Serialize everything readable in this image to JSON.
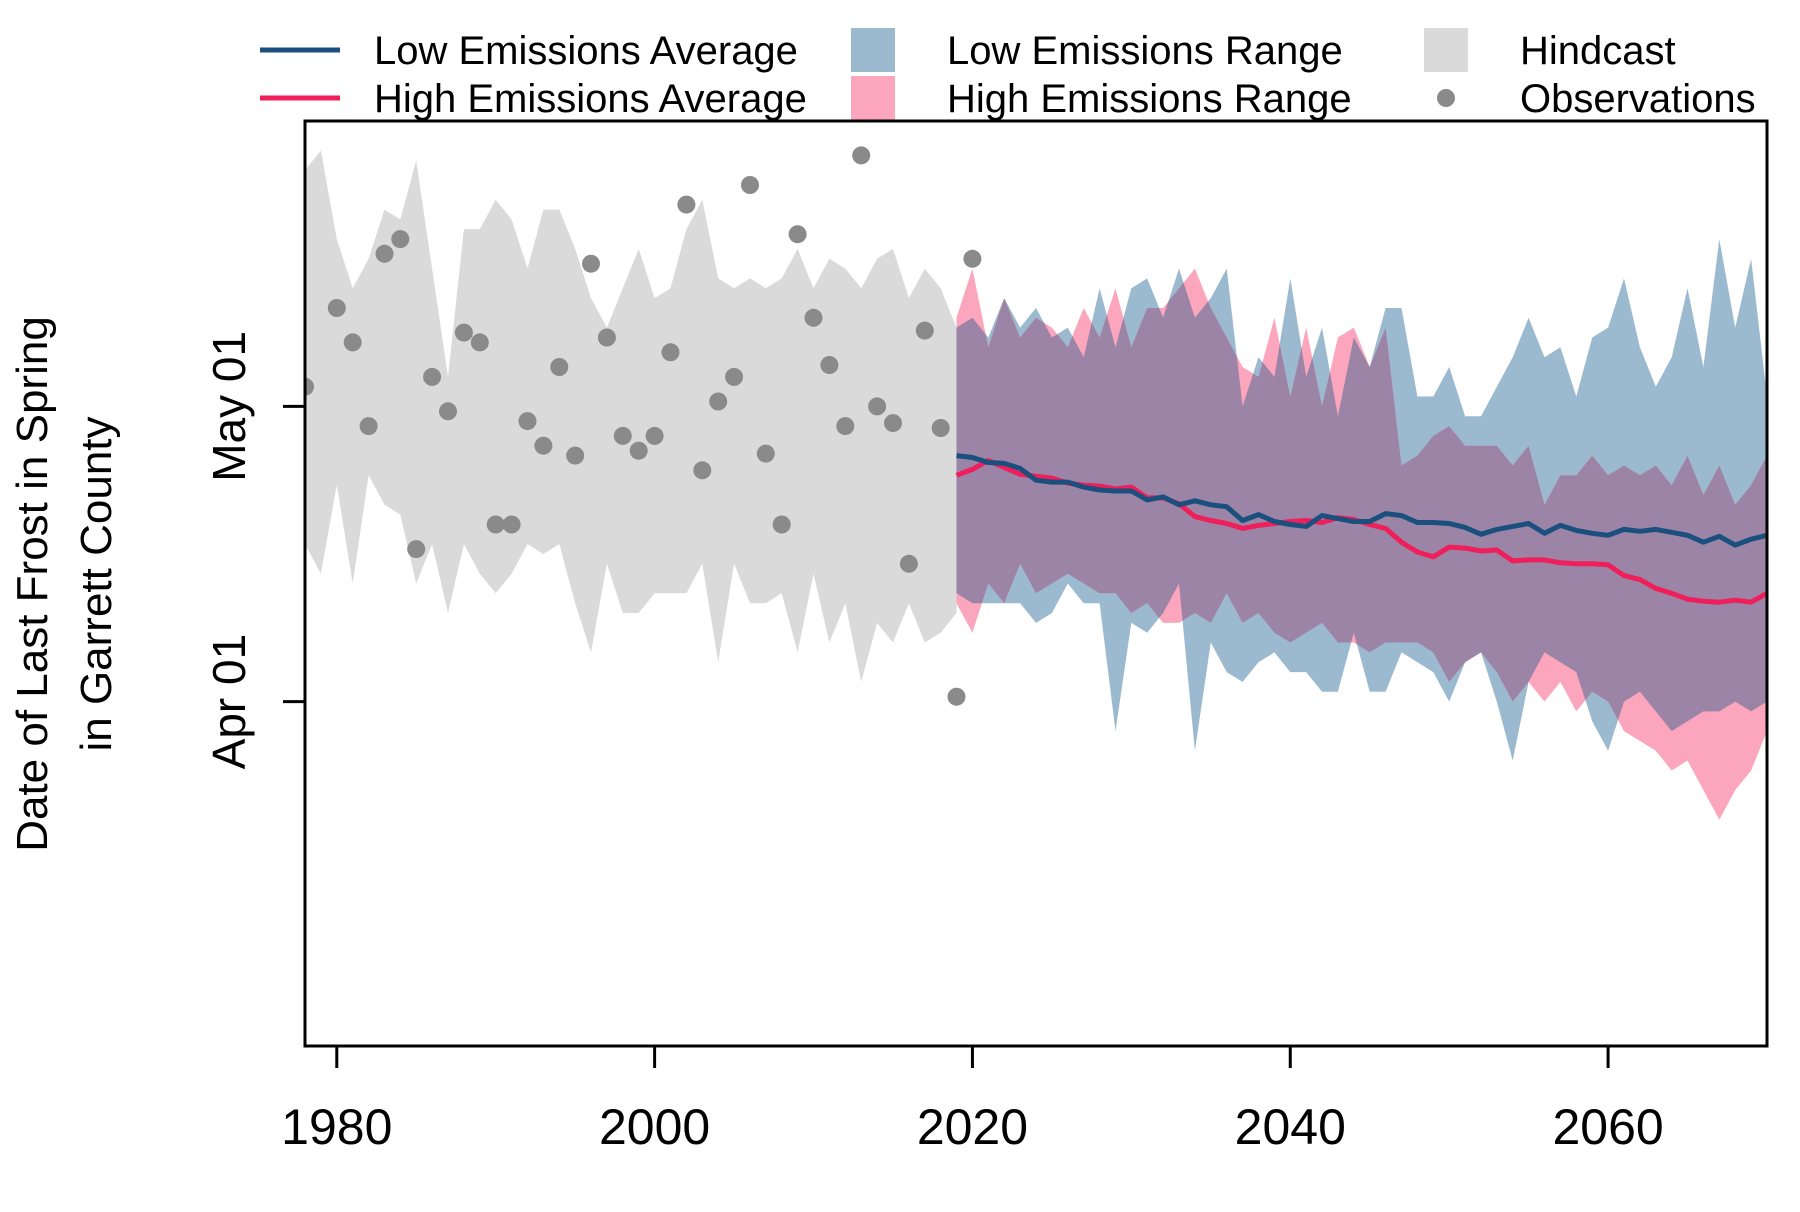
{
  "chart_data": {
    "type": "area",
    "title": "",
    "xlabel": "",
    "ylabel": "Date of Last Frost in Spring\nin Garrett County",
    "xlim": [
      1978,
      2070
    ],
    "ylim": [
      -65,
      29
    ],
    "x_ticks": [
      1980,
      2000,
      2020,
      2040,
      2060
    ],
    "y_ticks": [
      {
        "value": 0,
        "label": "May 01"
      },
      {
        "value": -30,
        "label": "Apr 01"
      }
    ],
    "legend_position": "top (outside plot, 3 columns)",
    "legend": [
      {
        "label": "Low Emissions Average",
        "kind": "line",
        "color": "#1a4f7e"
      },
      {
        "label": "High Emissions Average",
        "kind": "line",
        "color": "#ee1f5a"
      },
      {
        "label": "Low Emissions Range",
        "kind": "box",
        "color": "#9bbad0"
      },
      {
        "label": "High Emissions Range",
        "kind": "box",
        "color": "#fca6bd"
      },
      {
        "label": "Hindcast",
        "kind": "box",
        "color": "#dadada"
      },
      {
        "label": "Observations",
        "kind": "point",
        "color": "#8a8a8a"
      }
    ],
    "colors": {
      "low_avg": "#1a4f7e",
      "high_avg": "#ee1f5a",
      "low_range": "#9bbad0",
      "high_range": "#fca6bd",
      "overlap": "#9b84a6",
      "hindcast": "#dadada",
      "observations": "#8a8a8a"
    },
    "series": [
      {
        "name": "Hindcast",
        "kind": "range",
        "x": [
          1978,
          1979,
          1980,
          1981,
          1982,
          1983,
          1984,
          1985,
          1986,
          1987,
          1988,
          1989,
          1990,
          1991,
          1992,
          1993,
          1994,
          1995,
          1996,
          1997,
          1998,
          1999,
          2000,
          2001,
          2002,
          2003,
          2004,
          2005,
          2006,
          2007,
          2008,
          2009,
          2010,
          2011,
          2012,
          2013,
          2014,
          2015,
          2016,
          2017,
          2018,
          2019
        ],
        "upper": [
          24,
          26,
          17,
          12,
          15,
          20,
          19,
          25,
          14,
          3,
          18,
          18,
          21,
          19,
          14,
          20,
          20,
          16,
          11,
          8,
          12,
          16,
          11,
          12,
          18,
          21,
          13,
          12,
          13,
          12,
          13,
          16,
          12,
          15,
          14,
          12,
          15,
          16,
          11,
          14,
          12,
          8
        ],
        "lower": [
          -14,
          -17,
          -8,
          -18,
          -7,
          -10,
          -11,
          -18,
          -14,
          -21,
          -14,
          -17,
          -19,
          -17,
          -14,
          -15,
          -14,
          -20,
          -25,
          -16,
          -21,
          -21,
          -19,
          -19,
          -19,
          -16,
          -26,
          -16,
          -20,
          -20,
          -19,
          -25,
          -17,
          -24,
          -20,
          -28,
          -22,
          -24,
          -20,
          -24,
          -23,
          -21
        ]
      },
      {
        "name": "Observations",
        "kind": "points",
        "x": [
          1978,
          1980,
          1981,
          1982,
          1983,
          1984,
          1985,
          1986,
          1987,
          1988,
          1989,
          1990,
          1991,
          1992,
          1993,
          1994,
          1995,
          1996,
          1997,
          1998,
          1999,
          2000,
          2001,
          2002,
          2003,
          2004,
          2005,
          2006,
          2007,
          2008,
          2009,
          2010,
          2011,
          2012,
          2013,
          2014,
          2015,
          2016,
          2017,
          2018,
          2019,
          2020
        ],
        "y": [
          2,
          10,
          6.5,
          -2,
          15.5,
          17,
          -14.5,
          3,
          -0.5,
          7.5,
          6.5,
          -12,
          -12,
          -1.5,
          -4,
          4,
          -5,
          14.5,
          7,
          -3,
          -4.5,
          -3,
          5.5,
          20.5,
          -6.5,
          0.5,
          3,
          22.5,
          -4.8,
          -12,
          17.5,
          9,
          4.2,
          -2,
          25.5,
          0,
          -1.7,
          -16,
          7.7,
          -2.2,
          -29.5,
          15
        ]
      },
      {
        "name": "Low Emissions Range",
        "kind": "range",
        "x": [
          2019,
          2020,
          2021,
          2022,
          2023,
          2024,
          2025,
          2026,
          2027,
          2028,
          2029,
          2030,
          2031,
          2032,
          2033,
          2034,
          2035,
          2036,
          2037,
          2038,
          2039,
          2040,
          2041,
          2042,
          2043,
          2044,
          2045,
          2046,
          2047,
          2048,
          2049,
          2050,
          2051,
          2052,
          2053,
          2054,
          2055,
          2056,
          2057,
          2058,
          2059,
          2060,
          2061,
          2062,
          2063,
          2064,
          2065,
          2066,
          2067,
          2068,
          2069,
          2070
        ],
        "upper": [
          8,
          9,
          7,
          11,
          8,
          10,
          7,
          8,
          5,
          12,
          6,
          12,
          13,
          9,
          14,
          9,
          11,
          14,
          0,
          5,
          3,
          13,
          3,
          8,
          -1,
          7,
          4,
          10,
          10,
          1,
          1,
          4,
          -1,
          -1,
          2,
          5,
          9,
          5,
          6,
          1,
          7,
          8,
          13,
          6,
          2,
          5,
          12,
          4,
          17,
          8,
          15,
          1
        ],
        "lower": [
          -19,
          -20,
          -20,
          -20,
          -20,
          -22,
          -21,
          -18,
          -20,
          -20,
          -33,
          -22,
          -23,
          -21,
          -18,
          -35,
          -24,
          -27,
          -28,
          -26,
          -25,
          -27,
          -27,
          -29,
          -29,
          -23,
          -29,
          -29,
          -25,
          -26,
          -27,
          -30,
          -26,
          -25,
          -30,
          -36,
          -28,
          -25,
          -26,
          -27,
          -32,
          -35,
          -30,
          -29,
          -31,
          -33,
          -32,
          -31,
          -31,
          -30,
          -31,
          -30
        ]
      },
      {
        "name": "High Emissions Range",
        "kind": "range",
        "x": [
          2019,
          2020,
          2021,
          2022,
          2023,
          2024,
          2025,
          2026,
          2027,
          2028,
          2029,
          2030,
          2031,
          2032,
          2033,
          2034,
          2035,
          2036,
          2037,
          2038,
          2039,
          2040,
          2041,
          2042,
          2043,
          2044,
          2045,
          2046,
          2047,
          2048,
          2049,
          2050,
          2051,
          2052,
          2053,
          2054,
          2055,
          2056,
          2057,
          2058,
          2059,
          2060,
          2061,
          2062,
          2063,
          2064,
          2065,
          2066,
          2067,
          2068,
          2069,
          2070
        ],
        "upper": [
          9,
          14,
          6,
          11,
          7,
          9,
          8,
          6,
          10,
          7,
          12,
          6,
          10,
          10,
          12,
          14,
          10,
          7,
          4,
          3,
          9,
          1,
          8,
          0,
          7,
          8,
          4,
          8,
          -6,
          -5,
          -3,
          -2,
          -4,
          -4,
          -4,
          -6,
          -4,
          -10,
          -7,
          -7,
          -5,
          -7,
          -6,
          -7,
          -6,
          -8,
          -5,
          -9,
          -6,
          -10,
          -8,
          -5
        ],
        "lower": [
          -20,
          -23,
          -18,
          -20,
          -16,
          -19,
          -18,
          -17,
          -18,
          -19,
          -19,
          -21,
          -20,
          -22,
          -22,
          -21,
          -22,
          -19,
          -22,
          -21,
          -23,
          -24,
          -23,
          -22,
          -24,
          -24,
          -25,
          -24,
          -24,
          -24,
          -25,
          -28,
          -26,
          -25,
          -27,
          -30,
          -28,
          -30,
          -28,
          -31,
          -29,
          -30,
          -33,
          -34,
          -35,
          -37,
          -36,
          -39,
          -42,
          -39,
          -37,
          -33
        ]
      },
      {
        "name": "Low Emissions Average",
        "kind": "line",
        "x": [
          2019,
          2020,
          2021,
          2022,
          2023,
          2024,
          2025,
          2026,
          2027,
          2028,
          2029,
          2030,
          2031,
          2032,
          2033,
          2034,
          2035,
          2036,
          2037,
          2038,
          2039,
          2040,
          2041,
          2042,
          2043,
          2044,
          2045,
          2046,
          2047,
          2048,
          2049,
          2050,
          2051,
          2052,
          2053,
          2054,
          2055,
          2056,
          2057,
          2058,
          2059,
          2060,
          2061,
          2062,
          2063,
          2064,
          2065,
          2066,
          2067,
          2068,
          2069,
          2070
        ],
        "values": [
          -5,
          -5.2,
          -5.7,
          -5.8,
          -6.3,
          -7.5,
          -7.7,
          -7.7,
          -8.2,
          -8.5,
          -8.6,
          -8.6,
          -9.5,
          -9.2,
          -10,
          -9.6,
          -10,
          -10.2,
          -11.6,
          -11,
          -11.7,
          -12,
          -12.2,
          -11.1,
          -11.4,
          -11.7,
          -11.7,
          -10.9,
          -11.1,
          -11.8,
          -11.8,
          -11.9,
          -12.3,
          -13,
          -12.5,
          -12.2,
          -11.9,
          -12.9,
          -12.1,
          -12.6,
          -12.9,
          -13.1,
          -12.5,
          -12.7,
          -12.5,
          -12.8,
          -13.1,
          -13.8,
          -13.2,
          -14.1,
          -13.5,
          -13.1
        ]
      },
      {
        "name": "High Emissions Average",
        "kind": "line",
        "x": [
          2019,
          2020,
          2021,
          2022,
          2023,
          2024,
          2025,
          2026,
          2027,
          2028,
          2029,
          2030,
          2031,
          2032,
          2033,
          2034,
          2035,
          2036,
          2037,
          2038,
          2039,
          2040,
          2041,
          2042,
          2043,
          2044,
          2045,
          2046,
          2047,
          2048,
          2049,
          2050,
          2051,
          2052,
          2053,
          2054,
          2055,
          2056,
          2057,
          2058,
          2059,
          2060,
          2061,
          2062,
          2063,
          2064,
          2065,
          2066,
          2067,
          2068,
          2069,
          2070
        ],
        "values": [
          -7,
          -6.4,
          -5.5,
          -6.2,
          -6.9,
          -7.1,
          -7.3,
          -7.8,
          -8,
          -8.1,
          -8.4,
          -8.2,
          -9.3,
          -9.3,
          -9.9,
          -11.2,
          -11.6,
          -11.9,
          -12.4,
          -12.1,
          -11.9,
          -11.7,
          -11.6,
          -11.8,
          -11.3,
          -11.5,
          -12,
          -12.4,
          -13.8,
          -14.8,
          -15.3,
          -14.3,
          -14.4,
          -14.7,
          -14.6,
          -15.7,
          -15.6,
          -15.6,
          -15.9,
          -16,
          -16,
          -16.1,
          -17.2,
          -17.6,
          -18.5,
          -19,
          -19.6,
          -19.8,
          -19.9,
          -19.7,
          -19.9,
          -19
        ]
      }
    ]
  }
}
